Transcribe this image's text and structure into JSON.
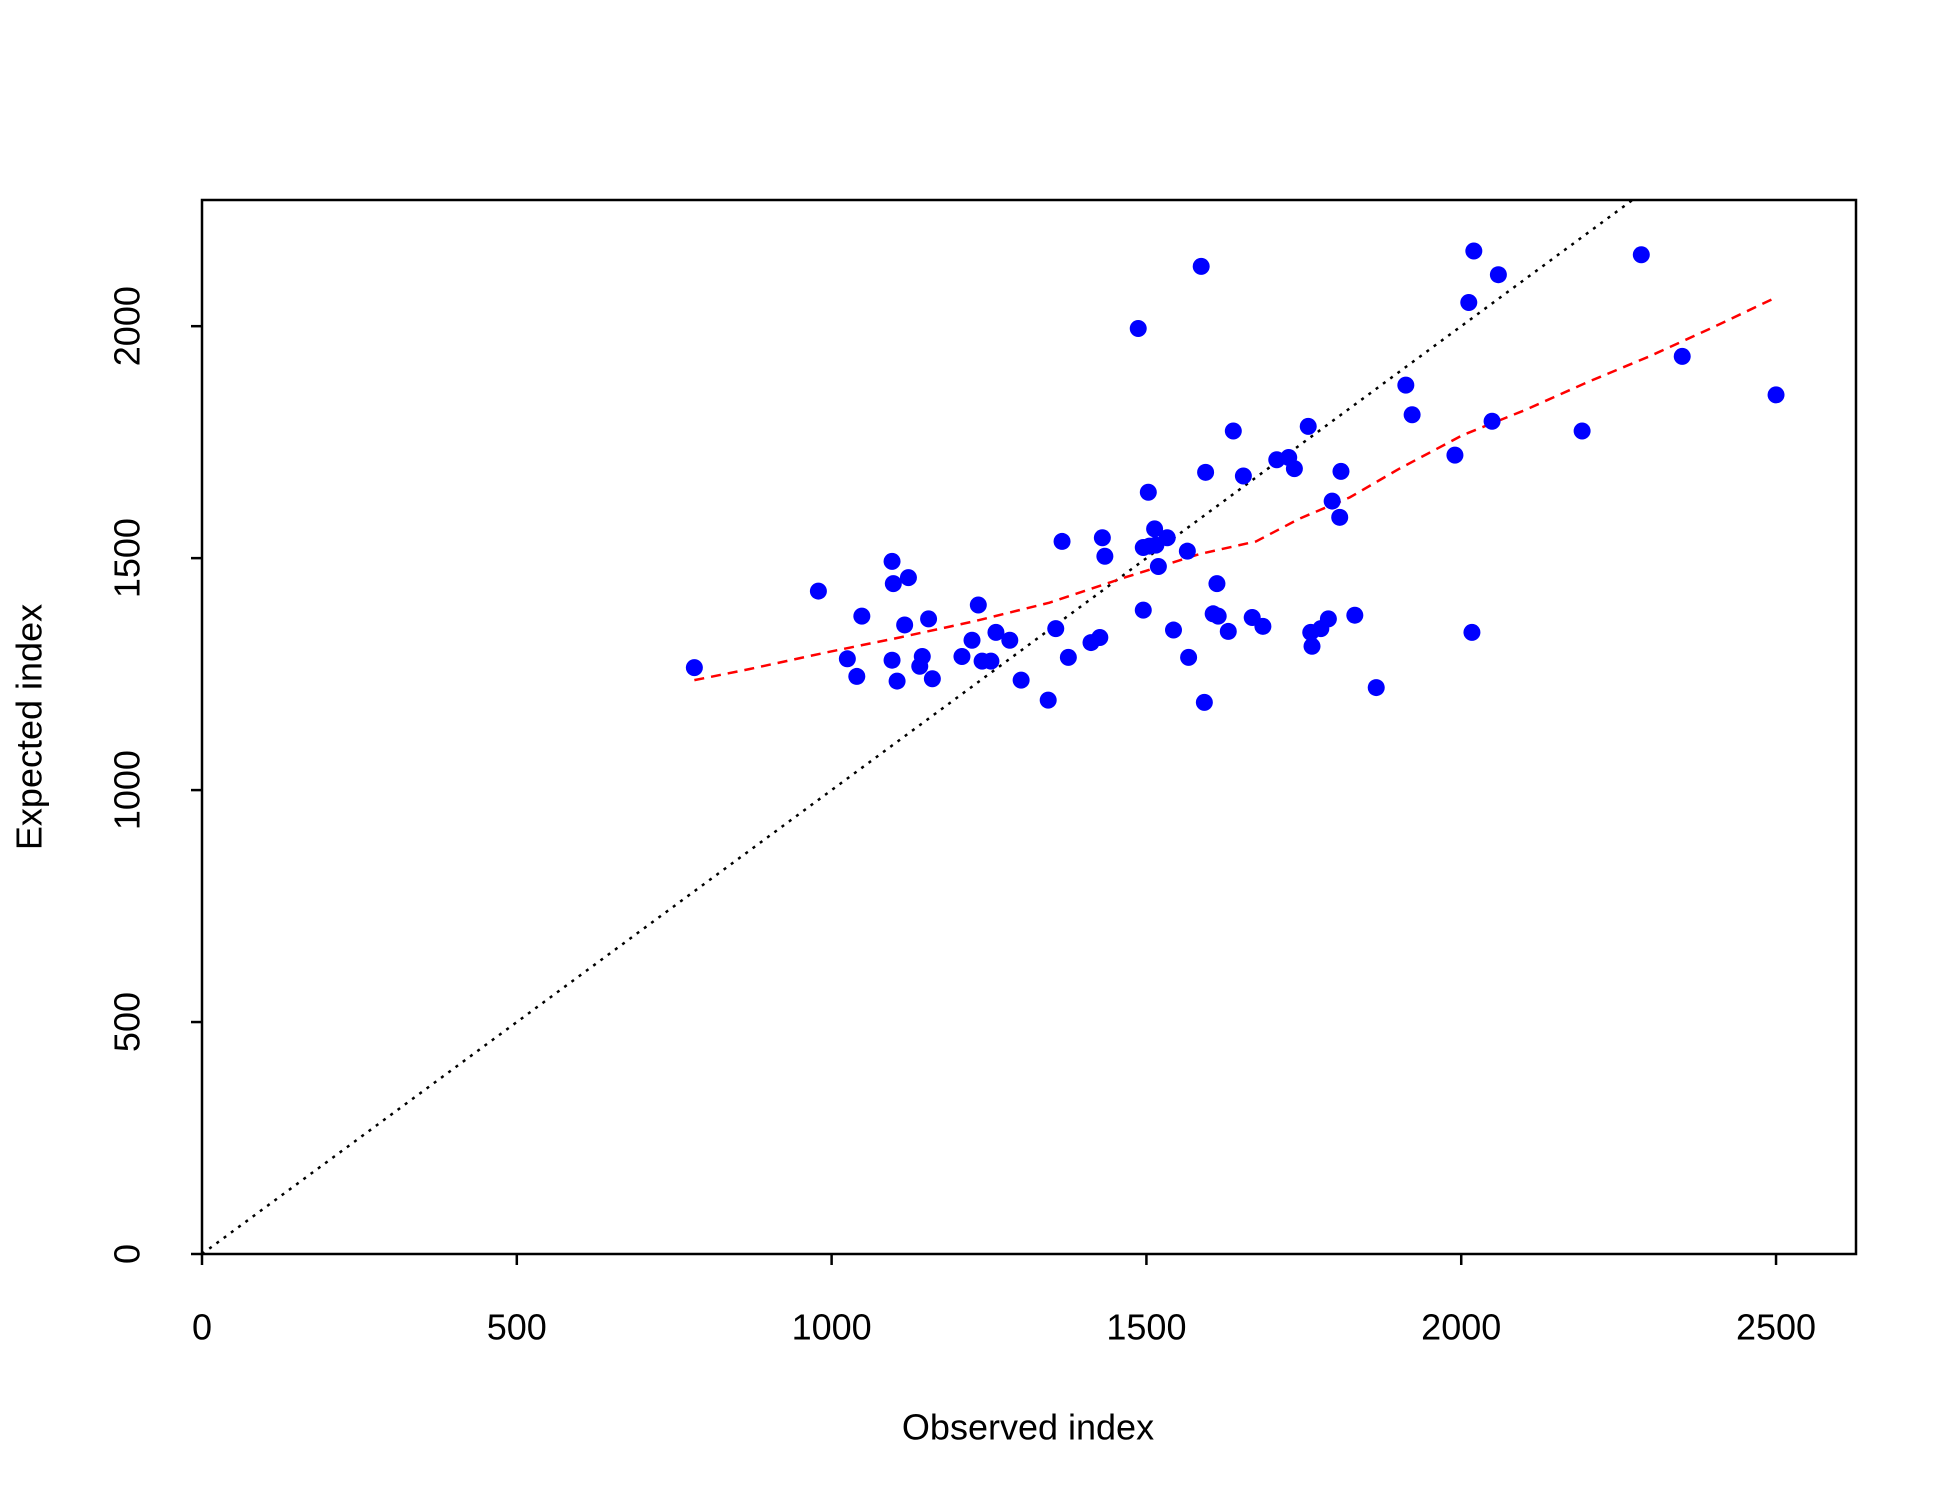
{
  "chart_data": {
    "type": "scatter",
    "xlabel": "Observed index",
    "ylabel": "Expected index",
    "xlim": [
      0,
      2627
    ],
    "ylim": [
      0,
      2272
    ],
    "xticks": [
      0,
      500,
      1000,
      1500,
      2000,
      2500
    ],
    "yticks": [
      0,
      500,
      1000,
      1500,
      2000
    ],
    "identity_line": true,
    "identity_color": "#000000",
    "points": {
      "color": "#0000ff",
      "x": [
        782,
        979,
        1025,
        1040,
        1048,
        1096,
        1098,
        1122,
        1096,
        1104,
        1116,
        1140,
        1144,
        1154,
        1160,
        1207,
        1223,
        1233,
        1239,
        1253,
        1261,
        1283,
        1301,
        1344,
        1356,
        1366,
        1376,
        1412,
        1426,
        1430,
        1434,
        1487,
        1495,
        1495,
        1503,
        1505,
        1513,
        1519,
        1515,
        1533,
        1543,
        1565,
        1567,
        1587,
        1592,
        1594,
        1606,
        1612,
        1614,
        1630,
        1638,
        1654,
        1668,
        1685,
        1707,
        1726,
        1735,
        1757,
        1761,
        1763,
        1777,
        1789,
        1795,
        1807,
        1809,
        1831,
        1865,
        1912,
        1922,
        1990,
        2012,
        2017,
        2020,
        2049,
        2059,
        2192,
        2286,
        2351,
        2500
      ],
      "y": [
        1264,
        1429,
        1283,
        1245,
        1375,
        1493,
        1445,
        1458,
        1280,
        1235,
        1356,
        1267,
        1288,
        1369,
        1240,
        1288,
        1323,
        1399,
        1278,
        1278,
        1340,
        1323,
        1237,
        1194,
        1348,
        1536,
        1286,
        1318,
        1329,
        1544,
        1504,
        1995,
        1388,
        1523,
        1642,
        1526,
        1563,
        1482,
        1528,
        1544,
        1345,
        1515,
        1286,
        2129,
        1189,
        1685,
        1380,
        1445,
        1375,
        1342,
        1774,
        1677,
        1372,
        1353,
        1712,
        1717,
        1693,
        1784,
        1340,
        1310,
        1348,
        1369,
        1623,
        1588,
        1687,
        1377,
        1221,
        1873,
        1809,
        1722,
        2051,
        1340,
        2162,
        1795,
        2111,
        1774,
        2154,
        1935,
        1852
      ]
    },
    "trend": {
      "color": "#ff0000",
      "x": [
        782,
        870,
        989,
        1108,
        1227,
        1346,
        1465,
        1585,
        1674,
        1743,
        1823,
        1902,
        2002,
        2101,
        2200,
        2299,
        2399,
        2500
      ],
      "y": [
        1237,
        1261,
        1296,
        1329,
        1364,
        1404,
        1458,
        1509,
        1536,
        1585,
        1631,
        1693,
        1765,
        1819,
        1879,
        1935,
        1997,
        2062
      ]
    }
  }
}
